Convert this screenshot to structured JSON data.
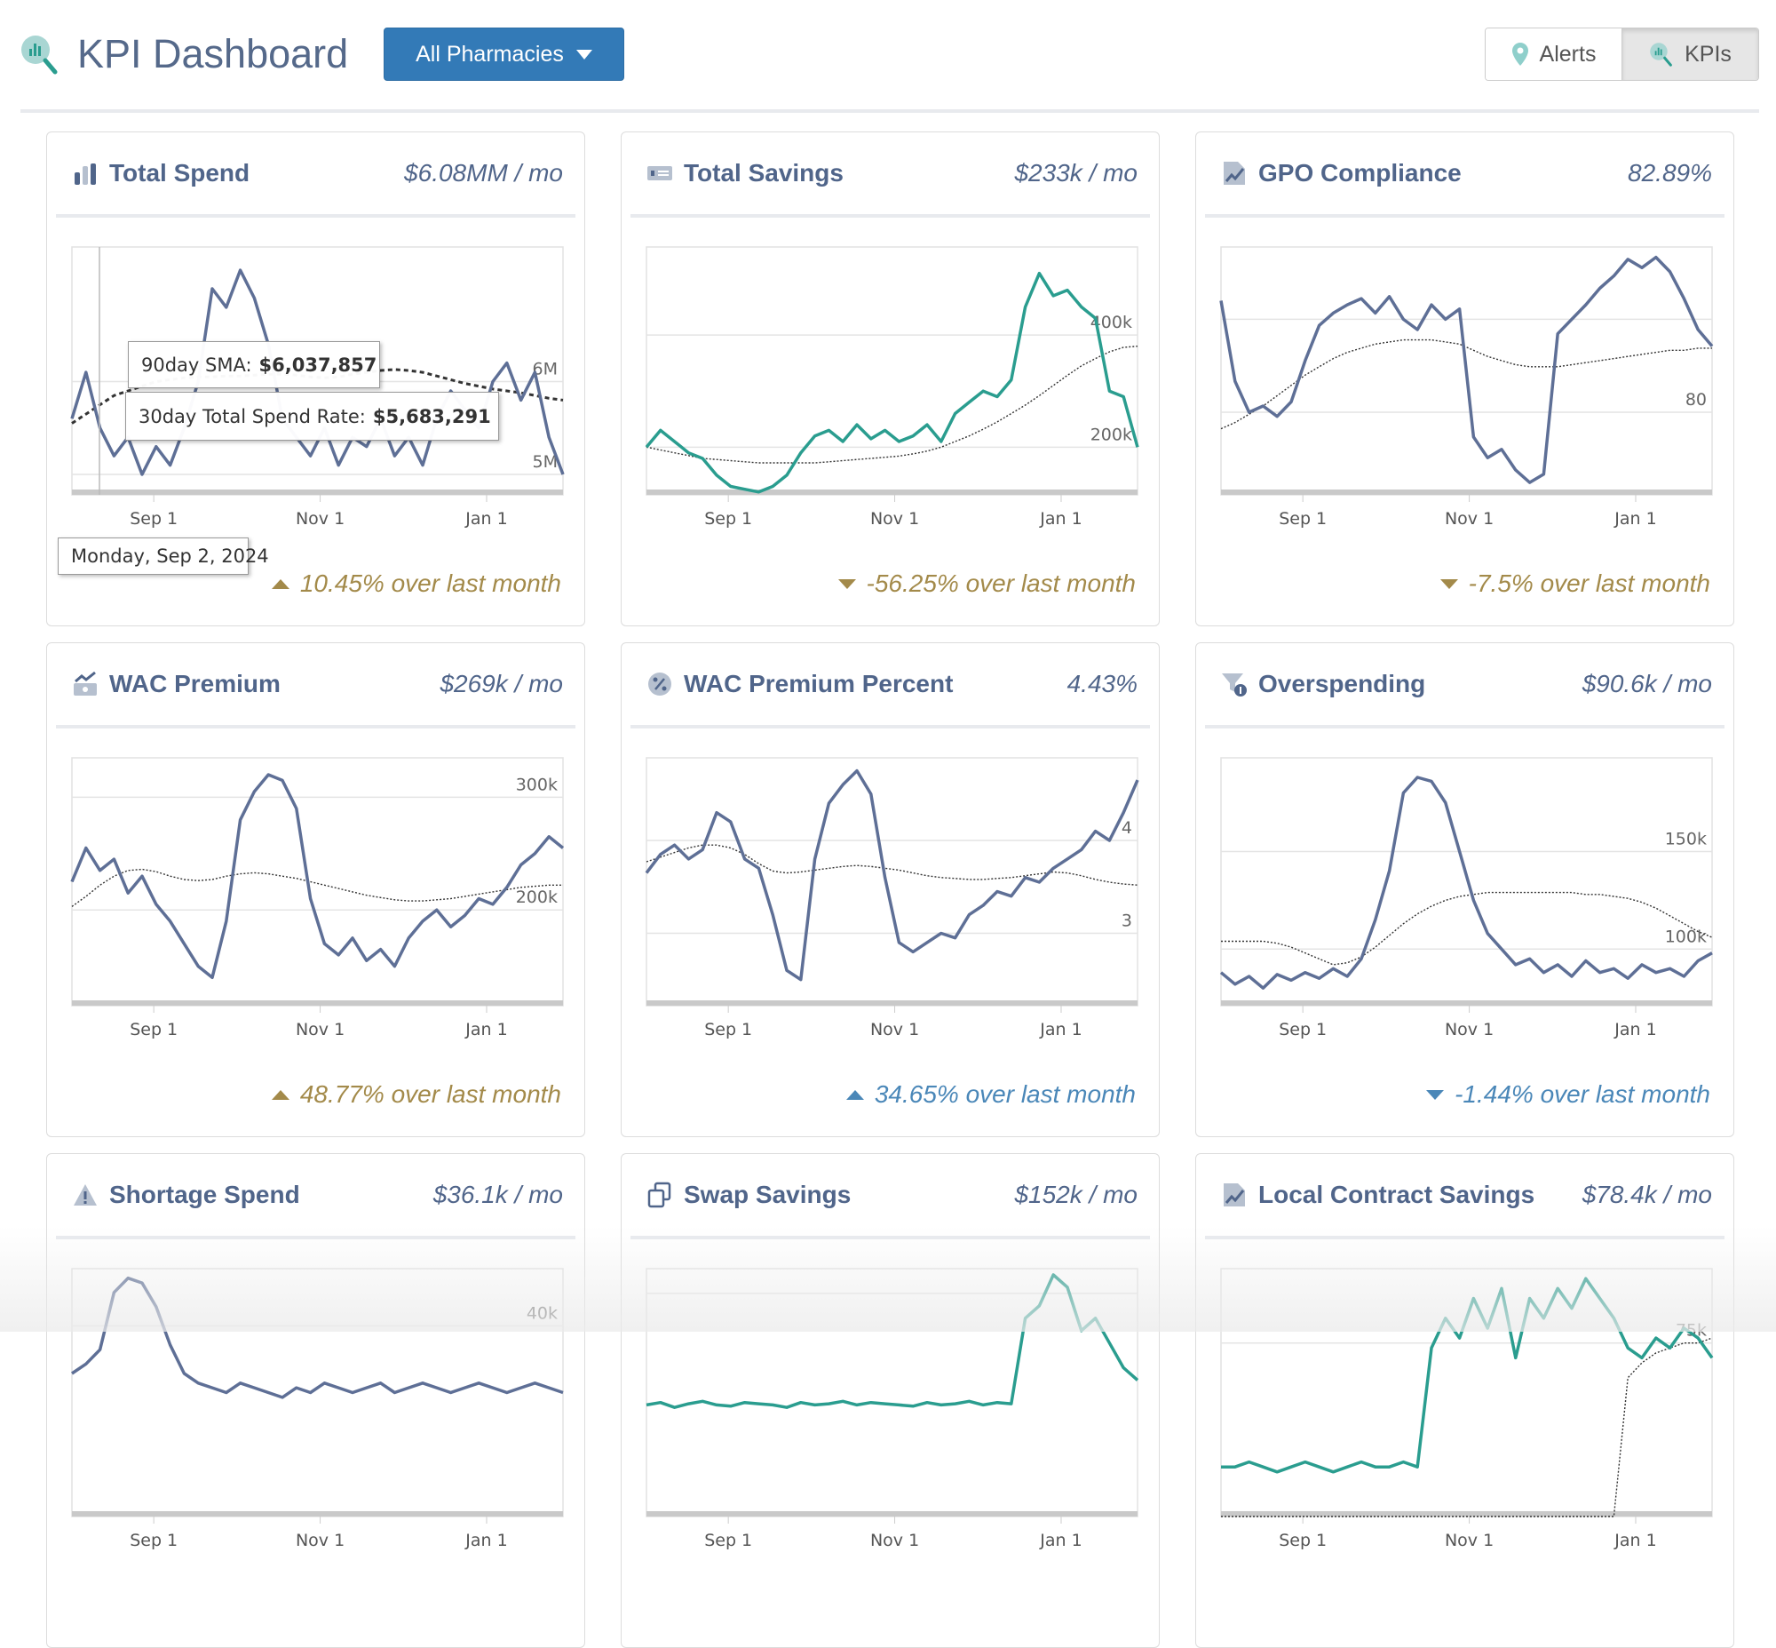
{
  "header": {
    "title": "KPI Dashboard",
    "logo_icon": "chart-magnifier-icon",
    "dropdown": {
      "label": "All Pharmacies",
      "icon": "caret-down-icon"
    },
    "toggle": [
      {
        "label": "Alerts",
        "icon": "map-pin-icon",
        "active": false
      },
      {
        "label": "KPIs",
        "icon": "chart-magnifier-icon",
        "active": true
      }
    ]
  },
  "colors": {
    "accent": "#337ab7",
    "line": "#5e6f96",
    "teal": "#2a9d8f",
    "up_gold": "#a38a4a",
    "blue": "#4a87b8",
    "title": "#50658a"
  },
  "x_axis": {
    "start": "2024-08-02",
    "end": "2025-01-29",
    "ticks": [
      {
        "date": "2024-09-01",
        "label": "Sep 1"
      },
      {
        "date": "2024-11-01",
        "label": "Nov 1"
      },
      {
        "date": "2025-01-01",
        "label": "Jan 1"
      }
    ]
  },
  "cards": [
    {
      "title": "Total Spend",
      "icon": "bar-chart-icon",
      "value": "$6.08MM / mo",
      "change": "10.45% over last month",
      "direction": "up",
      "change_color": "#a38a4a",
      "chart_data": {
        "type": "line",
        "ylim": [
          4.78,
          7.45
        ],
        "unit": "M",
        "ticks": [
          {
            "v": 6,
            "label": "6M"
          },
          {
            "v": 5,
            "label": "5M"
          }
        ],
        "color": "#5e6f96",
        "sma_style": "dashed",
        "values": [
          5.6,
          6.1,
          5.5,
          5.2,
          5.4,
          5.0,
          5.3,
          5.1,
          5.5,
          6.0,
          7.0,
          6.8,
          7.2,
          6.9,
          6.4,
          5.6,
          5.4,
          5.2,
          5.5,
          5.1,
          5.4,
          5.3,
          5.6,
          5.2,
          5.4,
          5.1,
          5.6,
          5.9,
          5.7,
          5.5,
          6.0,
          6.2,
          5.8,
          6.1,
          5.4,
          5.0
        ],
        "sma": [
          5.55,
          5.65,
          5.75,
          5.85,
          5.9,
          5.95,
          6.0,
          6.02,
          6.04,
          6.05,
          6.05,
          6.06,
          6.06,
          6.07,
          6.08,
          6.08,
          6.07,
          6.05,
          6.04,
          6.05,
          6.08,
          6.1,
          6.12,
          6.13,
          6.12,
          6.1,
          6.06,
          6.02,
          5.98,
          5.95,
          5.92,
          5.9,
          5.88,
          5.85,
          5.82,
          5.8
        ]
      },
      "tooltip": {
        "date": "Monday, Sep 2, 2024",
        "sma_label": "90day SMA:",
        "sma_value": "$6,037,857",
        "rate_label": "30day Total Spend Rate:",
        "rate_value": "$5,683,291"
      }
    },
    {
      "title": "Total Savings",
      "icon": "money-bill-icon",
      "value": "$233k / mo",
      "change": "-56.25% over last month",
      "direction": "down",
      "change_color": "#a38a4a",
      "chart_data": {
        "type": "line",
        "ylim": [
          115,
          557
        ],
        "unit": "k",
        "ticks": [
          {
            "v": 400,
            "label": "400k"
          },
          {
            "v": 200,
            "label": "200k"
          }
        ],
        "color": "#2a9d8f",
        "values": [
          200,
          230,
          210,
          190,
          180,
          150,
          130,
          125,
          120,
          130,
          150,
          190,
          220,
          230,
          210,
          240,
          215,
          230,
          210,
          220,
          240,
          210,
          260,
          280,
          300,
          290,
          320,
          450,
          510,
          470,
          480,
          450,
          430,
          300,
          290,
          200
        ],
        "sma": [
          200,
          195,
          190,
          185,
          180,
          178,
          176,
          174,
          172,
          172,
          172,
          172,
          172,
          174,
          176,
          178,
          180,
          182,
          184,
          188,
          193,
          200,
          210,
          220,
          232,
          245,
          260,
          275,
          292,
          310,
          328,
          345,
          358,
          370,
          378,
          380
        ]
      }
    },
    {
      "title": "GPO Compliance",
      "icon": "file-chart-icon",
      "value": "82.89%",
      "change": "-7.5% over last month",
      "direction": "down",
      "change_color": "#a38a4a",
      "chart_data": {
        "type": "line",
        "ylim": [
          76,
          88
        ],
        "unit": "%",
        "ticks": [
          {
            "v": 80,
            "label": "80"
          },
          {
            "v": 84.5,
            "label": ""
          }
        ],
        "color": "#5e6f96",
        "values": [
          85.4,
          81.5,
          80.0,
          80.3,
          79.8,
          80.5,
          82.5,
          84.2,
          84.8,
          85.2,
          85.5,
          84.8,
          85.6,
          84.5,
          84.0,
          85.2,
          84.5,
          85.0,
          78.8,
          77.8,
          78.2,
          77.2,
          76.6,
          77.0,
          83.8,
          84.5,
          85.2,
          86.0,
          86.6,
          87.4,
          87.0,
          87.5,
          86.8,
          85.5,
          84.0,
          83.2
        ],
        "sma": [
          79.2,
          79.5,
          79.9,
          80.3,
          80.8,
          81.3,
          81.8,
          82.2,
          82.6,
          82.9,
          83.1,
          83.3,
          83.4,
          83.5,
          83.5,
          83.5,
          83.4,
          83.3,
          83.0,
          82.7,
          82.5,
          82.3,
          82.2,
          82.2,
          82.2,
          82.3,
          82.4,
          82.5,
          82.6,
          82.7,
          82.8,
          82.9,
          83.0,
          83.0,
          83.1,
          83.1
        ]
      }
    },
    {
      "title": "WAC Premium",
      "icon": "money-chart-icon",
      "value": "$269k / mo",
      "change": "48.77% over last month",
      "direction": "up",
      "change_color": "#a38a4a",
      "chart_data": {
        "type": "line",
        "ylim": [
          115,
          335
        ],
        "unit": "k",
        "ticks": [
          {
            "v": 300,
            "label": "300k"
          },
          {
            "v": 200,
            "label": "200k"
          }
        ],
        "color": "#5e6f96",
        "values": [
          225,
          255,
          235,
          245,
          215,
          230,
          205,
          190,
          170,
          150,
          140,
          190,
          280,
          305,
          320,
          315,
          290,
          210,
          170,
          160,
          175,
          155,
          165,
          150,
          175,
          190,
          200,
          185,
          195,
          210,
          205,
          220,
          240,
          250,
          265,
          255
        ],
        "sma": [
          203,
          212,
          222,
          230,
          235,
          236,
          234,
          230,
          227,
          226,
          227,
          230,
          232,
          233,
          232,
          230,
          228,
          225,
          222,
          219,
          216,
          213,
          211,
          209,
          208,
          208,
          209,
          210,
          212,
          214,
          216,
          218,
          220,
          221,
          222,
          222
        ]
      }
    },
    {
      "title": "WAC Premium Percent",
      "icon": "percent-badge-icon",
      "value": "4.43%",
      "change": "34.65% over last month",
      "direction": "up",
      "change_color": "#4a87b8",
      "chart_data": {
        "type": "line",
        "ylim": [
          2.22,
          4.89
        ],
        "unit": "%",
        "ticks": [
          {
            "v": 4,
            "label": "4"
          },
          {
            "v": 3,
            "label": "3"
          }
        ],
        "color": "#5e6f96",
        "values": [
          3.65,
          3.85,
          3.95,
          3.8,
          3.9,
          4.3,
          4.2,
          3.8,
          3.7,
          3.2,
          2.6,
          2.5,
          3.8,
          4.4,
          4.6,
          4.75,
          4.5,
          3.6,
          2.9,
          2.8,
          2.9,
          3.0,
          2.95,
          3.2,
          3.3,
          3.45,
          3.4,
          3.6,
          3.55,
          3.7,
          3.8,
          3.9,
          4.1,
          4.0,
          4.3,
          4.65
        ],
        "sma": [
          3.77,
          3.82,
          3.87,
          3.92,
          3.95,
          3.95,
          3.92,
          3.85,
          3.75,
          3.67,
          3.65,
          3.66,
          3.68,
          3.7,
          3.72,
          3.73,
          3.72,
          3.7,
          3.68,
          3.65,
          3.62,
          3.6,
          3.59,
          3.58,
          3.58,
          3.59,
          3.6,
          3.62,
          3.64,
          3.66,
          3.65,
          3.62,
          3.58,
          3.55,
          3.53,
          3.52
        ]
      }
    },
    {
      "title": "Overspending",
      "icon": "filter-dollar-icon",
      "value": "$90.6k / mo",
      "change": "-1.44% over last month",
      "direction": "down",
      "change_color": "#4a87b8",
      "chart_data": {
        "type": "line",
        "ylim": [
          71,
          198
        ],
        "unit": "k",
        "ticks": [
          {
            "v": 150,
            "label": "150k"
          },
          {
            "v": 100,
            "label": "100k"
          }
        ],
        "color": "#5e6f96",
        "values": [
          88,
          82,
          86,
          80,
          87,
          84,
          88,
          85,
          90,
          86,
          95,
          115,
          140,
          180,
          188,
          186,
          175,
          150,
          125,
          108,
          100,
          92,
          95,
          88,
          92,
          86,
          94,
          88,
          90,
          85,
          92,
          88,
          90,
          86,
          94,
          98
        ],
        "sma": [
          104,
          104,
          104,
          104,
          103,
          101,
          98,
          95,
          92,
          93,
          96,
          101,
          107,
          113,
          118,
          122,
          125,
          127,
          128,
          129,
          129,
          129,
          129,
          129,
          129,
          129,
          128,
          128,
          127,
          126,
          124,
          121,
          117,
          113,
          109,
          106
        ]
      }
    },
    {
      "title": "Shortage Spend",
      "icon": "warning-icon",
      "value": "$36.1k / mo",
      "change": "",
      "direction": "",
      "change_color": "#a38a4a",
      "chart_data": {
        "type": "line",
        "ylim": [
          0,
          52
        ],
        "unit": "k",
        "ticks": [
          {
            "v": 40,
            "label": "40k"
          }
        ],
        "color": "#5e6f96",
        "values": [
          30,
          32,
          35,
          47,
          50,
          49,
          44,
          36,
          30,
          28,
          27,
          26,
          28,
          27,
          26,
          25,
          27,
          26,
          28,
          27,
          26,
          27,
          28,
          26,
          27,
          28,
          27,
          26,
          27,
          28,
          27,
          26,
          27,
          28,
          27,
          26
        ],
        "sma": []
      }
    },
    {
      "title": "Swap Savings",
      "icon": "swap-icon",
      "value": "$152k / mo",
      "change": "",
      "direction": "",
      "change_color": "#a38a4a",
      "chart_data": {
        "type": "line",
        "ylim": [
          0,
          200
        ],
        "unit": "k",
        "ticks": [
          {
            "v": 180,
            "label": ""
          }
        ],
        "color": "#2a9d8f",
        "values": [
          90,
          92,
          88,
          91,
          93,
          90,
          89,
          92,
          91,
          90,
          88,
          92,
          90,
          91,
          93,
          90,
          92,
          91,
          90,
          89,
          92,
          90,
          91,
          93,
          90,
          92,
          91,
          160,
          170,
          195,
          185,
          150,
          160,
          140,
          120,
          110
        ],
        "sma": []
      }
    },
    {
      "title": "Local Contract Savings",
      "icon": "file-chart-icon",
      "value": "$78.4k / mo",
      "change": "",
      "direction": "",
      "change_color": "#a38a4a",
      "chart_data": {
        "type": "line",
        "ylim": [
          40,
          90
        ],
        "unit": "k",
        "ticks": [
          {
            "v": 75,
            "label": "75k"
          }
        ],
        "color": "#2a9d8f",
        "values": [
          50,
          50,
          51,
          50,
          49,
          50,
          51,
          50,
          49,
          50,
          51,
          50,
          50,
          51,
          50,
          74,
          80,
          76,
          84,
          78,
          86,
          72,
          84,
          80,
          86,
          82,
          88,
          84,
          80,
          74,
          72,
          76,
          74,
          78,
          76,
          72
        ],
        "sma": [
          40,
          40,
          40,
          40,
          40,
          40,
          40,
          40,
          40,
          40,
          40,
          40,
          40,
          40,
          40,
          40,
          40,
          40,
          40,
          40,
          40,
          40,
          40,
          40,
          40,
          40,
          40,
          40,
          40,
          68,
          71,
          73,
          74,
          75,
          75,
          76
        ]
      }
    }
  ]
}
